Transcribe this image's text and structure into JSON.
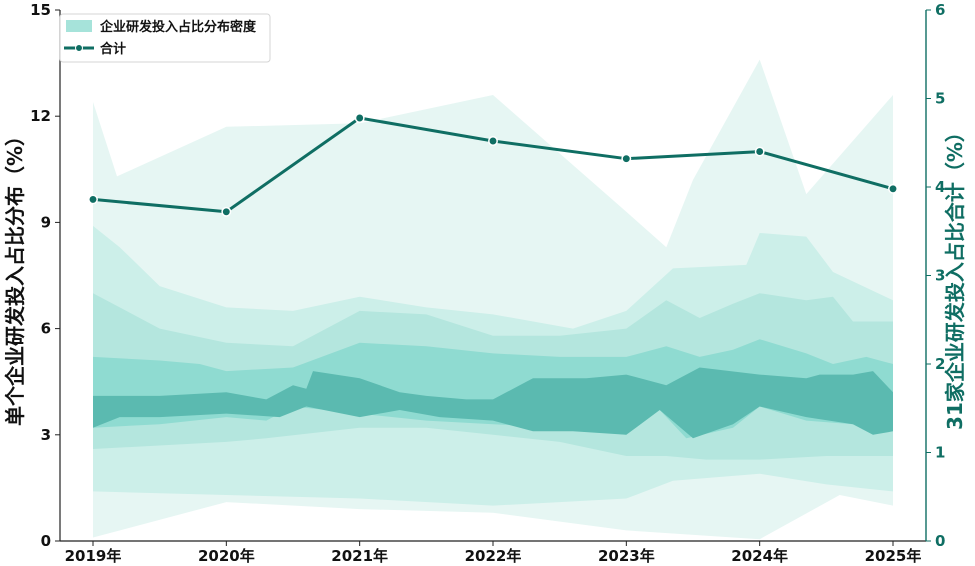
{
  "chart_data": {
    "type": "area",
    "categories": [
      "2019年",
      "2020年",
      "2021年",
      "2022年",
      "2023年",
      "2024年",
      "2025年"
    ],
    "y_left": {
      "label": "单个企业研发投入占比分布（%）",
      "lim": [
        0,
        15
      ],
      "ticks": [
        0,
        3,
        6,
        9,
        12,
        15
      ]
    },
    "y_right": {
      "label": "31家企业研发投入占比合计（%）",
      "lim": [
        0,
        6
      ],
      "ticks": [
        0,
        1,
        2,
        3,
        4,
        5,
        6
      ]
    },
    "density_bands": [
      {
        "name": "企业研发投入占比分布密度",
        "color": "#e6f6f3",
        "upper": [
          [
            0,
            12.4
          ],
          [
            0.18,
            10.3
          ],
          [
            1,
            11.7
          ],
          [
            2,
            11.8
          ],
          [
            3,
            12.6
          ],
          [
            4,
            9.3
          ],
          [
            4.3,
            8.3
          ],
          [
            4.5,
            10.2
          ],
          [
            5,
            13.6
          ],
          [
            5.35,
            9.8
          ],
          [
            6,
            12.6
          ]
        ],
        "lower": [
          [
            0,
            0.1
          ],
          [
            1,
            1.1
          ],
          [
            2,
            0.9
          ],
          [
            3,
            0.8
          ],
          [
            4,
            0.3
          ],
          [
            5,
            0.05
          ],
          [
            5.6,
            1.3
          ],
          [
            6,
            1.0
          ]
        ]
      },
      {
        "color": "#ccefe9",
        "upper": [
          [
            0,
            8.9
          ],
          [
            0.2,
            8.3
          ],
          [
            0.5,
            7.2
          ],
          [
            1,
            6.6
          ],
          [
            1.5,
            6.5
          ],
          [
            2,
            6.9
          ],
          [
            2.5,
            6.6
          ],
          [
            3,
            6.4
          ],
          [
            3.6,
            6.0
          ],
          [
            4,
            6.5
          ],
          [
            4.35,
            7.7
          ],
          [
            4.9,
            7.8
          ],
          [
            5,
            8.7
          ],
          [
            5.35,
            8.6
          ],
          [
            5.55,
            7.6
          ],
          [
            6,
            6.8
          ]
        ],
        "lower": [
          [
            0,
            1.4
          ],
          [
            1,
            1.3
          ],
          [
            2,
            1.2
          ],
          [
            3,
            1.0
          ],
          [
            3.5,
            1.1
          ],
          [
            4,
            1.2
          ],
          [
            4.35,
            1.7
          ],
          [
            5,
            1.9
          ],
          [
            5.5,
            1.6
          ],
          [
            6,
            1.4
          ]
        ]
      },
      {
        "color": "#b4e6de",
        "upper": [
          [
            0,
            7.0
          ],
          [
            0.5,
            6.0
          ],
          [
            1,
            5.6
          ],
          [
            1.5,
            5.5
          ],
          [
            2,
            6.5
          ],
          [
            2.5,
            6.4
          ],
          [
            3,
            5.8
          ],
          [
            3.5,
            5.8
          ],
          [
            4,
            6.0
          ],
          [
            4.3,
            6.8
          ],
          [
            4.55,
            6.3
          ],
          [
            4.8,
            6.7
          ],
          [
            5,
            7.0
          ],
          [
            5.35,
            6.8
          ],
          [
            5.55,
            6.9
          ],
          [
            5.7,
            6.2
          ],
          [
            6,
            6.2
          ]
        ],
        "lower": [
          [
            0,
            2.6
          ],
          [
            1,
            2.8
          ],
          [
            1.3,
            2.9
          ],
          [
            2,
            3.2
          ],
          [
            2.5,
            3.2
          ],
          [
            3,
            3.0
          ],
          [
            3.5,
            2.8
          ],
          [
            4,
            2.4
          ],
          [
            4.3,
            2.4
          ],
          [
            4.6,
            2.3
          ],
          [
            5,
            2.3
          ],
          [
            5.5,
            2.4
          ],
          [
            6,
            2.4
          ]
        ]
      },
      {
        "color": "#8fdbd1",
        "upper": [
          [
            0,
            5.2
          ],
          [
            0.5,
            5.1
          ],
          [
            0.8,
            5.0
          ],
          [
            1,
            4.8
          ],
          [
            1.5,
            4.9
          ],
          [
            2,
            5.6
          ],
          [
            2.5,
            5.5
          ],
          [
            3,
            5.3
          ],
          [
            3.5,
            5.2
          ],
          [
            4,
            5.2
          ],
          [
            4.3,
            5.5
          ],
          [
            4.55,
            5.2
          ],
          [
            4.8,
            5.4
          ],
          [
            5,
            5.7
          ],
          [
            5.35,
            5.3
          ],
          [
            5.55,
            5.0
          ],
          [
            5.8,
            5.2
          ],
          [
            6,
            5.0
          ]
        ],
        "lower": [
          [
            0,
            3.2
          ],
          [
            0.5,
            3.3
          ],
          [
            1,
            3.5
          ],
          [
            1.3,
            3.4
          ],
          [
            1.5,
            3.8
          ],
          [
            2,
            3.6
          ],
          [
            2.5,
            3.4
          ],
          [
            3,
            3.3
          ],
          [
            3.5,
            3.2
          ],
          [
            4,
            3.0
          ],
          [
            4.25,
            3.7
          ],
          [
            4.45,
            2.9
          ],
          [
            4.8,
            3.2
          ],
          [
            5,
            3.8
          ],
          [
            5.35,
            3.4
          ],
          [
            5.7,
            3.3
          ],
          [
            5.85,
            3.0
          ],
          [
            6,
            3.2
          ]
        ]
      },
      {
        "color": "#5bbab0",
        "upper": [
          [
            0,
            4.1
          ],
          [
            0.5,
            4.1
          ],
          [
            1,
            4.2
          ],
          [
            1.3,
            4.0
          ],
          [
            1.5,
            4.4
          ],
          [
            1.6,
            4.3
          ],
          [
            1.65,
            4.8
          ],
          [
            2,
            4.6
          ],
          [
            2.3,
            4.2
          ],
          [
            2.5,
            4.1
          ],
          [
            2.8,
            4.0
          ],
          [
            3,
            4.0
          ],
          [
            3.3,
            4.6
          ],
          [
            3.7,
            4.6
          ],
          [
            4,
            4.7
          ],
          [
            4.3,
            4.4
          ],
          [
            4.55,
            4.9
          ],
          [
            5,
            4.7
          ],
          [
            5.35,
            4.6
          ],
          [
            5.45,
            4.7
          ],
          [
            5.7,
            4.7
          ],
          [
            5.85,
            4.8
          ],
          [
            6,
            4.2
          ]
        ],
        "lower": [
          [
            0,
            3.2
          ],
          [
            0.2,
            3.5
          ],
          [
            0.5,
            3.5
          ],
          [
            1,
            3.6
          ],
          [
            1.4,
            3.5
          ],
          [
            1.6,
            3.8
          ],
          [
            2,
            3.5
          ],
          [
            2.3,
            3.7
          ],
          [
            2.6,
            3.5
          ],
          [
            3,
            3.4
          ],
          [
            3.3,
            3.1
          ],
          [
            3.6,
            3.1
          ],
          [
            4,
            3.0
          ],
          [
            4.25,
            3.7
          ],
          [
            4.5,
            2.9
          ],
          [
            4.8,
            3.3
          ],
          [
            5,
            3.8
          ],
          [
            5.35,
            3.5
          ],
          [
            5.7,
            3.3
          ],
          [
            5.85,
            3.0
          ],
          [
            6,
            3.1
          ]
        ]
      }
    ],
    "series": [
      {
        "name": "合计",
        "axis": "right",
        "values": [
          3.86,
          3.72,
          4.78,
          4.52,
          4.32,
          4.4,
          3.98
        ],
        "color": "#0f6e63"
      }
    ],
    "legend_position": "top-left",
    "grid": false
  }
}
